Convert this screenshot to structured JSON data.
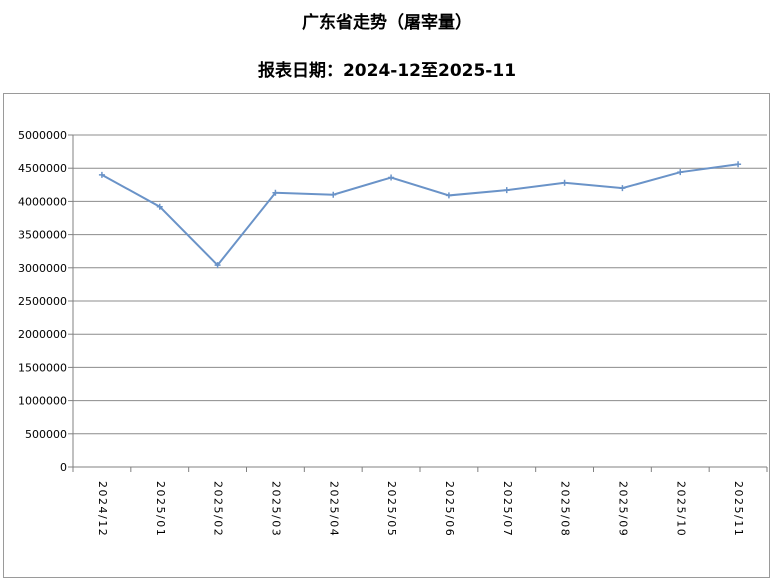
{
  "title": "广东省走势（屠宰量）",
  "subtitle": "报表日期：2024-12至2025-11",
  "chart_data": {
    "type": "line",
    "title": "广东省走势（屠宰量）",
    "subtitle": "报表日期：2024-12至2025-11",
    "xlabel": "",
    "ylabel": "",
    "categories": [
      "2024/12",
      "2025/01",
      "2025/02",
      "2025/03",
      "2025/04",
      "2025/05",
      "2025/06",
      "2025/07",
      "2025/08",
      "2025/09",
      "2025/10",
      "2025/11"
    ],
    "series": [
      {
        "values": [
          4400000,
          3920000,
          3040000,
          4130000,
          4100000,
          4360000,
          4090000,
          4170000,
          4280000,
          4200000,
          4440000,
          4560000
        ]
      }
    ],
    "ylim": [
      0,
      5000000
    ],
    "yticks": [
      0,
      500000,
      1000000,
      1500000,
      2000000,
      2500000,
      3000000,
      3500000,
      4000000,
      4500000,
      5000000
    ],
    "grid": true,
    "line_color": "#6a93c8",
    "grid_color": "#8c8c8c"
  }
}
